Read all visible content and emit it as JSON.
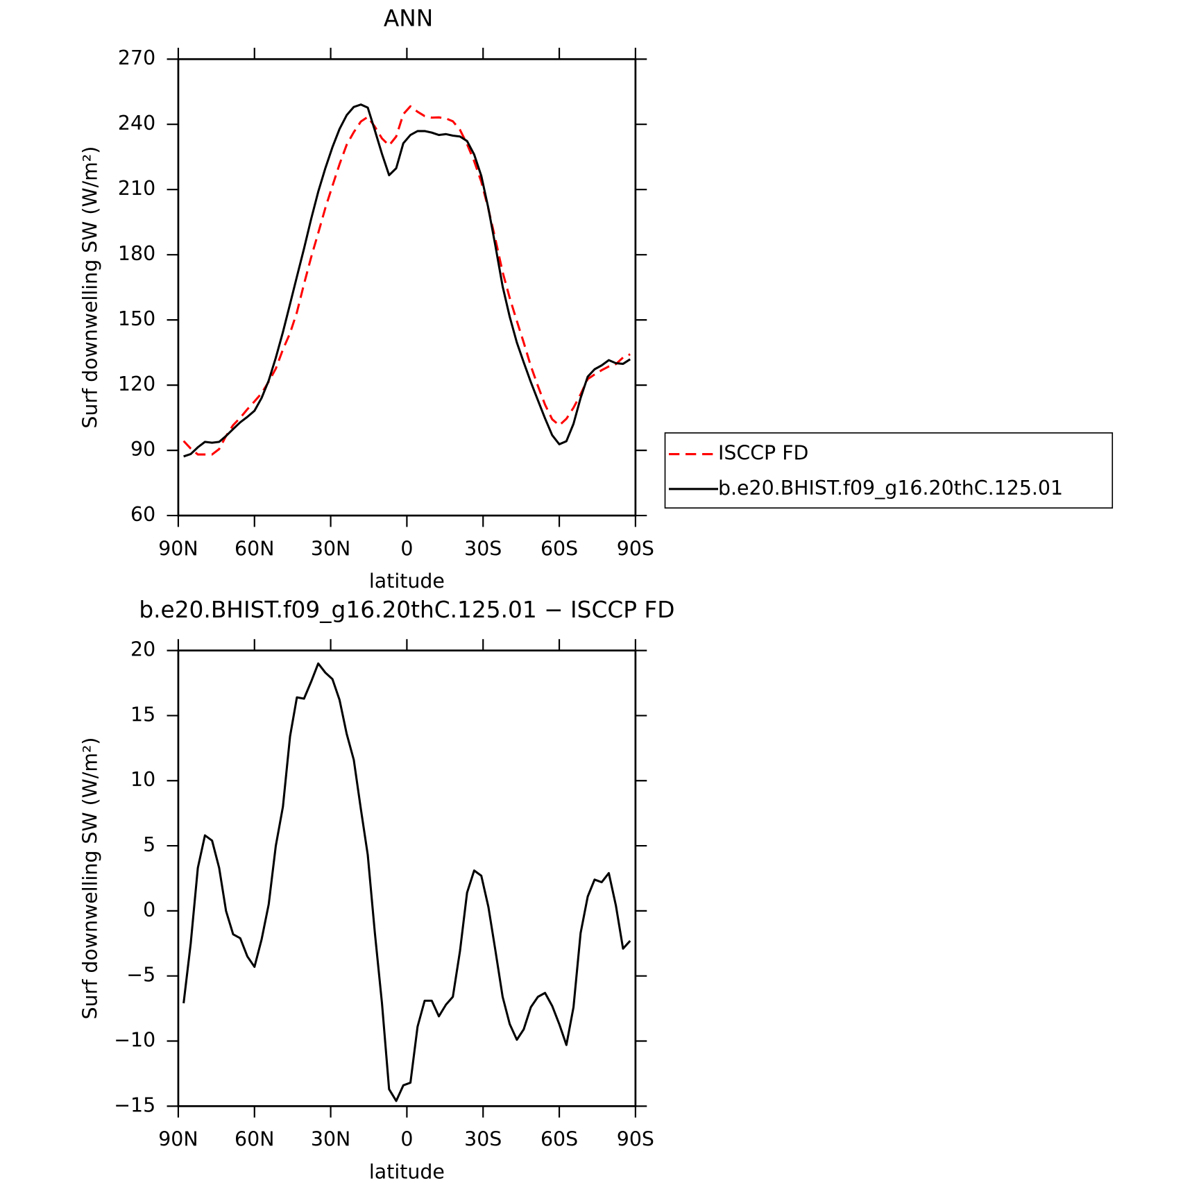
{
  "chart_data": [
    {
      "type": "line",
      "title": "ANN",
      "xlabel": "latitude",
      "ylabel": "Surf downwelling SW (W/m²)",
      "x": [
        87.9,
        85.1,
        82.3,
        79.5,
        76.7,
        73.9,
        71.2,
        68.4,
        65.6,
        62.8,
        60.0,
        57.2,
        54.4,
        51.6,
        48.8,
        46.0,
        43.3,
        40.5,
        37.7,
        34.9,
        32.1,
        29.3,
        26.5,
        23.7,
        20.9,
        18.1,
        15.4,
        12.6,
        9.8,
        7.0,
        4.2,
        1.4,
        -1.4,
        -4.2,
        -7.0,
        -9.8,
        -12.6,
        -15.4,
        -18.1,
        -20.9,
        -23.7,
        -26.5,
        -29.3,
        -32.1,
        -34.9,
        -37.7,
        -40.5,
        -43.3,
        -46.0,
        -48.8,
        -51.6,
        -54.4,
        -57.2,
        -60.0,
        -62.8,
        -65.6,
        -68.4,
        -71.2,
        -73.9,
        -76.7,
        -79.5,
        -82.3,
        -85.1,
        -87.9
      ],
      "series": [
        {
          "name": "ISCCP FD",
          "color": "#ff0000",
          "dash": true,
          "values": [
            94.3,
            90.8,
            88.1,
            88.1,
            88.1,
            90.6,
            96.6,
            101.6,
            105.0,
            108.9,
            112.5,
            116.3,
            121.6,
            127.6,
            136.4,
            143.9,
            153.5,
            166.5,
            178.8,
            190.0,
            201.5,
            211.7,
            221.7,
            230.6,
            236.4,
            241.3,
            243.4,
            238.9,
            233.5,
            230.3,
            234.4,
            244.7,
            248.3,
            245.8,
            243.8,
            243.1,
            243.2,
            242.7,
            241.4,
            237.5,
            230.9,
            223.0,
            213.6,
            201.0,
            186.9,
            172.0,
            160.1,
            149.5,
            139.6,
            128.8,
            119.6,
            111.0,
            104.3,
            101.5,
            104.5,
            109.6,
            115.8,
            122.8,
            124.9,
            126.9,
            128.6,
            129.7,
            132.7,
            134.2
          ]
        },
        {
          "name": "b.e20.BHIST.f09_g16.20thC.125.01",
          "color": "#000000",
          "dash": false,
          "values": [
            87.2,
            88.3,
            91.4,
            93.9,
            93.5,
            93.9,
            96.6,
            99.8,
            102.9,
            105.4,
            108.2,
            114.1,
            122.1,
            132.6,
            144.4,
            157.3,
            169.9,
            182.8,
            196.4,
            209.0,
            219.8,
            229.5,
            237.9,
            244.2,
            248.0,
            249.1,
            247.7,
            237.2,
            226.4,
            216.6,
            219.8,
            231.3,
            235.1,
            236.9,
            236.9,
            236.2,
            235.1,
            235.5,
            234.8,
            234.4,
            232.3,
            226.1,
            216.3,
            201.3,
            183.8,
            165.4,
            151.4,
            139.6,
            130.5,
            121.4,
            113.0,
            104.7,
            97.0,
            92.8,
            94.2,
            102.2,
            114.1,
            123.9,
            127.3,
            129.1,
            131.5,
            130.1,
            129.8,
            131.9
          ]
        }
      ],
      "xlim": [
        90,
        -90
      ],
      "xticks": [
        {
          "value": 90,
          "label": "90N"
        },
        {
          "value": 60,
          "label": "60N"
        },
        {
          "value": 30,
          "label": "30N"
        },
        0,
        {
          "value": -30,
          "label": "30S"
        },
        {
          "value": -60,
          "label": "60S"
        },
        {
          "value": -90,
          "label": "90S"
        }
      ],
      "ylim": [
        60,
        270
      ],
      "yticks": [
        60,
        90,
        120,
        150,
        180,
        210,
        240,
        270
      ],
      "legend": "right"
    },
    {
      "type": "line",
      "title": "b.e20.BHIST.f09_g16.20thC.125.01 − ISCCP FD",
      "xlabel": "latitude",
      "ylabel": "Surf downwelling SW (W/m²)",
      "x": [
        87.9,
        85.1,
        82.3,
        79.5,
        76.7,
        73.9,
        71.2,
        68.4,
        65.6,
        62.8,
        60.0,
        57.2,
        54.4,
        51.6,
        48.8,
        46.0,
        43.3,
        40.5,
        37.7,
        34.9,
        32.1,
        29.3,
        26.5,
        23.7,
        20.9,
        18.1,
        15.4,
        12.6,
        9.8,
        7.0,
        4.2,
        1.4,
        -1.4,
        -4.2,
        -7.0,
        -9.8,
        -12.6,
        -15.4,
        -18.1,
        -20.9,
        -23.7,
        -26.5,
        -29.3,
        -32.1,
        -34.9,
        -37.7,
        -40.5,
        -43.3,
        -46.0,
        -48.8,
        -51.6,
        -54.4,
        -57.2,
        -60.0,
        -62.8,
        -65.6,
        -68.4,
        -71.2,
        -73.9,
        -76.7,
        -79.5,
        -82.3,
        -85.1,
        -87.9
      ],
      "color": "#000000",
      "values": [
        -7.1,
        -2.5,
        3.3,
        5.8,
        5.4,
        3.3,
        0.0,
        -1.8,
        -2.1,
        -3.5,
        -4.3,
        -2.2,
        0.5,
        5.0,
        8.0,
        13.4,
        16.4,
        16.3,
        17.6,
        19.0,
        18.3,
        17.8,
        16.2,
        13.6,
        11.6,
        7.8,
        4.3,
        -1.7,
        -7.1,
        -13.7,
        -14.6,
        -13.4,
        -13.2,
        -8.9,
        -6.9,
        -6.9,
        -8.1,
        -7.2,
        -6.6,
        -3.1,
        1.4,
        3.1,
        2.7,
        0.3,
        -3.1,
        -6.6,
        -8.7,
        -9.9,
        -9.1,
        -7.4,
        -6.6,
        -6.3,
        -7.3,
        -8.7,
        -10.3,
        -7.4,
        -1.7,
        1.1,
        2.4,
        2.2,
        2.9,
        0.4,
        -2.9,
        -2.3
      ],
      "xlim": [
        90,
        -90
      ],
      "xticks": [
        {
          "value": 90,
          "label": "90N"
        },
        {
          "value": 60,
          "label": "60N"
        },
        {
          "value": 30,
          "label": "30N"
        },
        0,
        {
          "value": -30,
          "label": "30S"
        },
        {
          "value": -60,
          "label": "60S"
        },
        {
          "value": -90,
          "label": "90S"
        }
      ],
      "ylim": [
        -15,
        20
      ],
      "yticks": [
        {
          "value": -15,
          "label": "−15"
        },
        {
          "value": -10,
          "label": "−10"
        },
        {
          "value": -5,
          "label": "−5"
        },
        0,
        5,
        10,
        15,
        20
      ]
    }
  ]
}
